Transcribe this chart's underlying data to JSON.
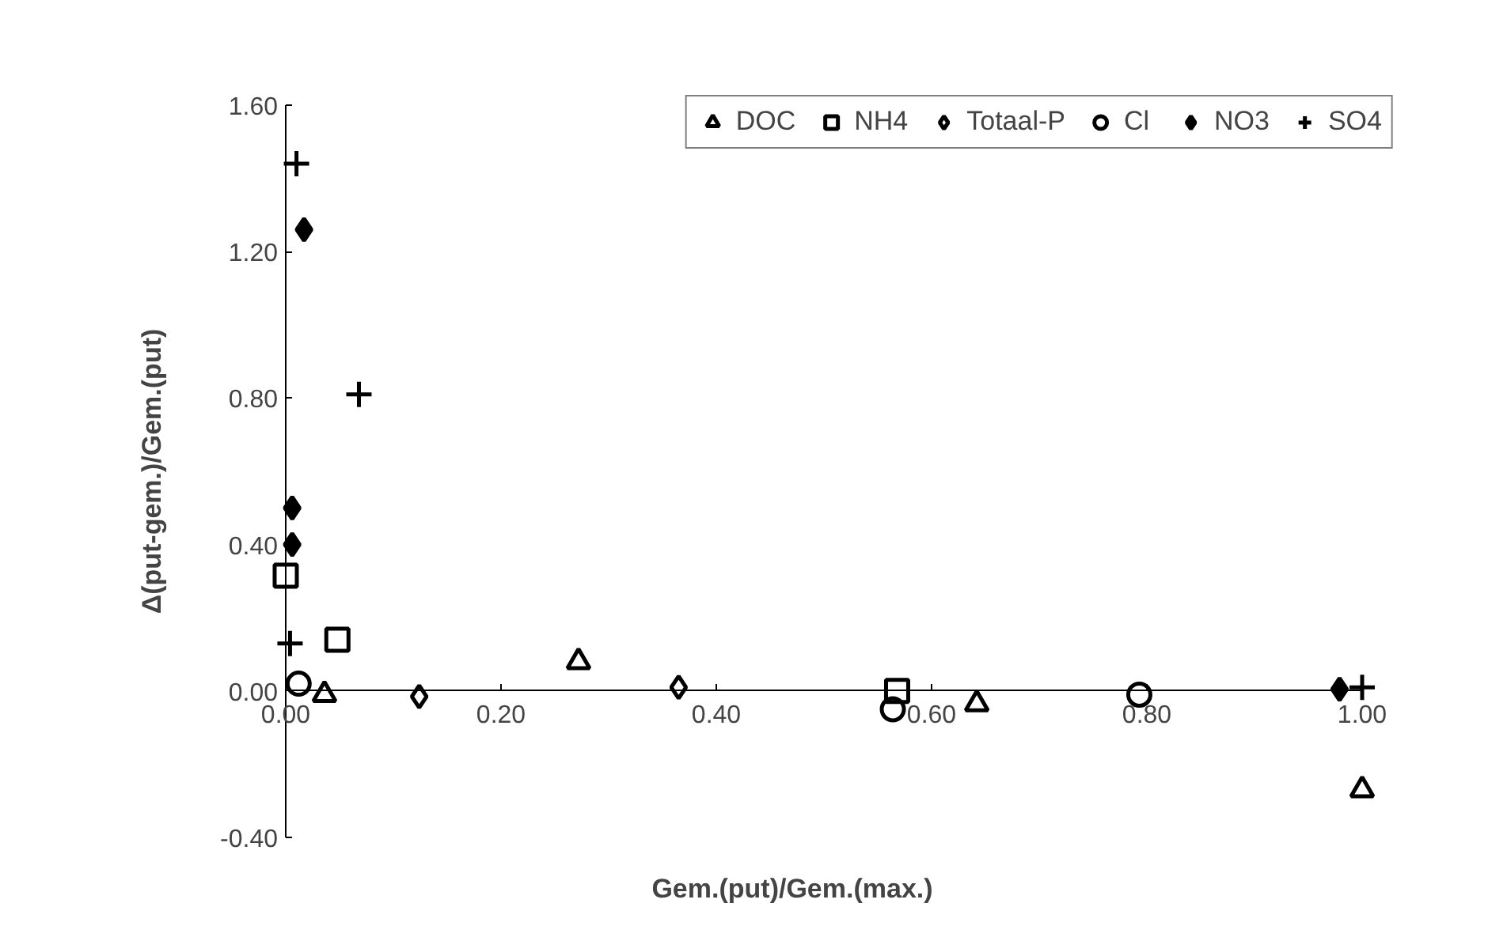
{
  "chart_data": {
    "type": "scatter",
    "xlabel": "Gem.(put)/Gem.(max.)",
    "ylabel": "Δ(put-gem.)/Gem.(put)",
    "xlim": [
      0,
      1.0
    ],
    "ylim": [
      -0.4,
      1.6
    ],
    "xticks": [
      {
        "value": 0,
        "label": "0.00"
      },
      {
        "value": 0.2,
        "label": "0.20"
      },
      {
        "value": 0.4,
        "label": "0.40"
      },
      {
        "value": 0.6,
        "label": "0.60"
      },
      {
        "value": 0.8,
        "label": "0.80"
      },
      {
        "value": 1.0,
        "label": "1.00"
      }
    ],
    "yticks": [
      {
        "value": -0.4,
        "label": "-0.40"
      },
      {
        "value": 0,
        "label": "0.00"
      },
      {
        "value": 0.4,
        "label": "0.40"
      },
      {
        "value": 0.8,
        "label": "0.80"
      },
      {
        "value": 1.2,
        "label": "1.20"
      },
      {
        "value": 1.6,
        "label": "1.60"
      }
    ],
    "grid": false,
    "legend": "top right",
    "series": [
      {
        "name": "DOC",
        "color": "#000000",
        "marker": "triangle",
        "x": [
          0.036,
          0.272,
          0.642,
          1.0
        ],
        "values": [
          -0.01,
          0.08,
          -0.035,
          -0.27
        ]
      },
      {
        "name": "NH4",
        "color": "#000000",
        "marker": "square",
        "x": [
          0.0,
          0.048,
          0.568
        ],
        "values": [
          0.315,
          0.14,
          0.0
        ]
      },
      {
        "name": "Totaal-P",
        "color": "#000000",
        "marker": "diamond",
        "x": [
          0.124,
          0.365
        ],
        "values": [
          -0.015,
          0.01
        ]
      },
      {
        "name": "Cl",
        "color": "#000000",
        "marker": "circle",
        "x": [
          0.012,
          0.564,
          0.793
        ],
        "values": [
          0.02,
          -0.05,
          -0.01
        ]
      },
      {
        "name": "NO3",
        "color": "#000000",
        "marker": "diamond",
        "x": [
          0.017,
          0.006,
          0.006,
          0.979
        ],
        "values": [
          1.26,
          0.5,
          0.4,
          0.005
        ]
      },
      {
        "name": "SO4",
        "color": "#000000",
        "marker": "cross",
        "x": [
          0.01,
          0.068,
          0.004,
          1.0
        ],
        "values": [
          1.44,
          0.81,
          0.13,
          0.01
        ]
      }
    ]
  }
}
